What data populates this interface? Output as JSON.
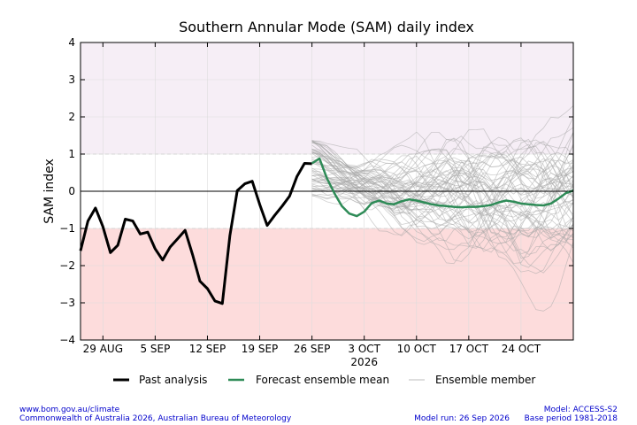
{
  "chart_data": {
    "type": "line",
    "title": "Southern Annular Mode (SAM) daily index",
    "ylabel": "SAM index",
    "xlabel": "",
    "ylim": [
      -4,
      4
    ],
    "y_ticks": [
      -4,
      -3,
      -2,
      -1,
      0,
      1,
      2,
      3,
      4
    ],
    "xlim": [
      "2026-08-26",
      "2026-10-31"
    ],
    "x_ticks": [
      {
        "date": "2026-08-29",
        "label": "29 AUG"
      },
      {
        "date": "2026-09-05",
        "label": "5 SEP"
      },
      {
        "date": "2026-09-12",
        "label": "12 SEP"
      },
      {
        "date": "2026-09-19",
        "label": "19 SEP"
      },
      {
        "date": "2026-09-26",
        "label": "26 SEP"
      },
      {
        "date": "2026-10-03",
        "label": "3 OCT"
      },
      {
        "date": "2026-10-10",
        "label": "10 OCT"
      },
      {
        "date": "2026-10-17",
        "label": "17 OCT"
      },
      {
        "date": "2026-10-24",
        "label": "24 OCT"
      }
    ],
    "year_label": {
      "date": "2026-10-03",
      "text": "2026"
    },
    "bands": [
      {
        "from": 1,
        "to": 4,
        "color": "#f6eef6"
      },
      {
        "from": -4,
        "to": -1,
        "color": "#fddcdc"
      }
    ],
    "grid": true,
    "legend": {
      "placement": "bottom",
      "entries": [
        {
          "label": "Past analysis",
          "color": "#000000"
        },
        {
          "label": "Forecast ensemble mean",
          "color": "#2e8b57"
        },
        {
          "label": "Ensemble member",
          "color": "#a8a8a8"
        }
      ]
    },
    "series": [
      {
        "name": "Past analysis",
        "color": "#000000",
        "x": [
          "2026-08-26",
          "2026-08-27",
          "2026-08-28",
          "2026-08-29",
          "2026-08-30",
          "2026-08-31",
          "2026-09-01",
          "2026-09-02",
          "2026-09-03",
          "2026-09-04",
          "2026-09-05",
          "2026-09-06",
          "2026-09-07",
          "2026-09-08",
          "2026-09-09",
          "2026-09-10",
          "2026-09-11",
          "2026-09-12",
          "2026-09-13",
          "2026-09-14",
          "2026-09-15",
          "2026-09-16",
          "2026-09-17",
          "2026-09-18",
          "2026-09-19",
          "2026-09-20",
          "2026-09-21",
          "2026-09-22",
          "2026-09-23",
          "2026-09-24",
          "2026-09-25",
          "2026-09-26"
        ],
        "y": [
          -1.6,
          -0.8,
          -0.45,
          -0.95,
          -1.65,
          -1.45,
          -0.75,
          -0.8,
          -1.15,
          -1.1,
          -1.55,
          -1.85,
          -1.5,
          -1.28,
          -1.05,
          -1.7,
          -2.42,
          -2.62,
          -2.95,
          -3.02,
          -1.2,
          0.02,
          0.2,
          0.27,
          -0.35,
          -0.92,
          -0.65,
          -0.4,
          -0.13,
          0.4,
          0.75,
          0.74
        ]
      },
      {
        "name": "Forecast ensemble mean",
        "color": "#2e8b57",
        "x": [
          "2026-09-26",
          "2026-09-27",
          "2026-09-28",
          "2026-09-29",
          "2026-09-30",
          "2026-10-01",
          "2026-10-02",
          "2026-10-03",
          "2026-10-04",
          "2026-10-05",
          "2026-10-06",
          "2026-10-07",
          "2026-10-08",
          "2026-10-09",
          "2026-10-10",
          "2026-10-11",
          "2026-10-12",
          "2026-10-13",
          "2026-10-14",
          "2026-10-15",
          "2026-10-16",
          "2026-10-17",
          "2026-10-18",
          "2026-10-19",
          "2026-10-20",
          "2026-10-21",
          "2026-10-22",
          "2026-10-23",
          "2026-10-24",
          "2026-10-25",
          "2026-10-26",
          "2026-10-27",
          "2026-10-28",
          "2026-10-29",
          "2026-10-30",
          "2026-10-31"
        ],
        "y": [
          0.75,
          0.88,
          0.35,
          -0.05,
          -0.4,
          -0.6,
          -0.67,
          -0.55,
          -0.32,
          -0.25,
          -0.33,
          -0.35,
          -0.27,
          -0.22,
          -0.25,
          -0.3,
          -0.35,
          -0.38,
          -0.4,
          -0.42,
          -0.43,
          -0.42,
          -0.42,
          -0.4,
          -0.37,
          -0.3,
          -0.25,
          -0.28,
          -0.33,
          -0.35,
          -0.37,
          -0.38,
          -0.33,
          -0.2,
          -0.05,
          0.02
        ]
      }
    ]
  },
  "footer": {
    "website": "www.bom.gov.au/climate",
    "copyright": "Commonwealth of Australia 2026, Australian Bureau of Meteorology",
    "model_run": "Model run: 26 Sep 2026",
    "model": "Model: ACCESS-S2",
    "base_period": "Base period 1981-2018"
  }
}
